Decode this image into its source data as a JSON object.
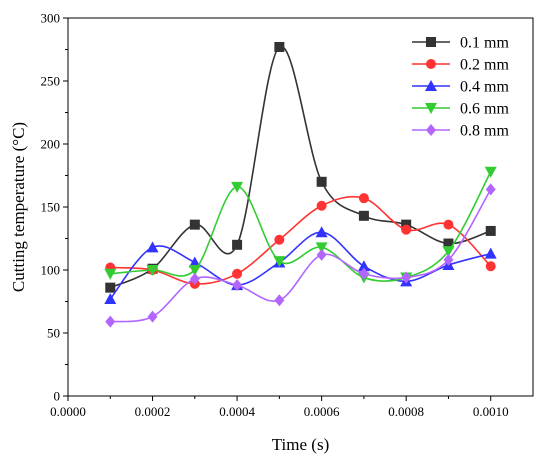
{
  "chart_data": {
    "type": "line",
    "xlabel": "Time (s)",
    "ylabel": "Cutting temperature (°C)",
    "xlim": [
      0,
      0.0011
    ],
    "ylim": [
      0,
      300
    ],
    "xticks": [
      "0.0000",
      "0.0002",
      "0.0004",
      "0.0006",
      "0.0008",
      "0.0010"
    ],
    "xtick_values": [
      0,
      0.0002,
      0.0004,
      0.0006,
      0.0008,
      0.001
    ],
    "yticks": [
      "0",
      "50",
      "100",
      "150",
      "200",
      "250",
      "300"
    ],
    "ytick_values": [
      0,
      50,
      100,
      150,
      200,
      250,
      300
    ],
    "legend_position": "top-right",
    "grid": false,
    "x": [
      0.0001,
      0.0002,
      0.0003,
      0.0004,
      0.0005,
      0.0006,
      0.0007,
      0.0008,
      0.0009,
      0.001
    ],
    "series": [
      {
        "name": "0.1 mm",
        "color": "#333333",
        "marker": "square",
        "values": [
          86,
          101,
          136,
          120,
          277,
          170,
          143,
          136,
          121,
          131
        ]
      },
      {
        "name": "0.2 mm",
        "color": "#ff3333",
        "marker": "circle",
        "values": [
          102,
          100,
          89,
          97,
          124,
          151,
          157,
          132,
          136,
          103
        ]
      },
      {
        "name": "0.4 mm",
        "color": "#3333ff",
        "marker": "triangle-up",
        "values": [
          77,
          118,
          106,
          88,
          106,
          130,
          103,
          91,
          104,
          113
        ]
      },
      {
        "name": "0.6 mm",
        "color": "#33cc33",
        "marker": "triangle-down",
        "values": [
          97,
          100,
          100,
          166,
          107,
          118,
          94,
          94,
          115,
          178
        ]
      },
      {
        "name": "0.8 mm",
        "color": "#b366ff",
        "marker": "diamond",
        "values": [
          59,
          63,
          93,
          88,
          76,
          112,
          97,
          94,
          108,
          164
        ]
      }
    ]
  }
}
